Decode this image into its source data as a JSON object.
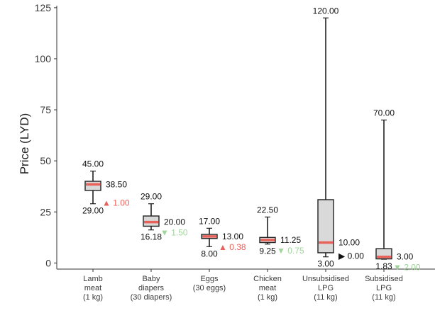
{
  "chart_data": {
    "type": "box",
    "ylabel": "Price (LYD)",
    "ylim": [
      -3,
      126
    ],
    "yticks": [
      0,
      25,
      50,
      75,
      100,
      125
    ],
    "yticklabels": [
      "0",
      "25",
      "50",
      "75",
      "100",
      "125"
    ],
    "colors": {
      "box_fill": "#d9d9d9",
      "median": "#e8615a",
      "up": "#e8615a",
      "down": "#9fd49a",
      "flat": "#111111"
    },
    "categories": [
      {
        "label_lines": [
          "Lamb",
          "meat",
          "(1 kg)"
        ],
        "max": 45,
        "q3": 40.0,
        "median": 38.5,
        "q1": 35.5,
        "min": 29,
        "max_label": "45.00",
        "min_label": "29.00",
        "median_label": "38.50",
        "change_symbol": "▲",
        "change_text": "1.00",
        "change_dir": "up"
      },
      {
        "label_lines": [
          "Baby",
          "diapers",
          "(30 diapers)"
        ],
        "max": 29,
        "q3": 23.0,
        "median": 20.0,
        "q1": 18.0,
        "min": 16.18,
        "max_label": "29.00",
        "min_label": "16.18",
        "median_label": "20.00",
        "change_symbol": "▼",
        "change_text": "1.50",
        "change_dir": "down"
      },
      {
        "label_lines": [
          "Eggs",
          "(30 eggs)"
        ],
        "max": 17,
        "q3": 14.0,
        "median": 13.0,
        "q1": 12.0,
        "min": 8,
        "max_label": "17.00",
        "min_label": "8.00",
        "median_label": "13.00",
        "change_symbol": "▲",
        "change_text": "0.38",
        "change_dir": "up"
      },
      {
        "label_lines": [
          "Chicken",
          "meat",
          "(1 kg)"
        ],
        "max": 22.5,
        "q3": 12.5,
        "median": 11.25,
        "q1": 10.0,
        "min": 9.25,
        "max_label": "22.50",
        "min_label": "9.25",
        "median_label": "11.25",
        "change_symbol": "▼",
        "change_text": "0.75",
        "change_dir": "down"
      },
      {
        "label_lines": [
          "Unsubsidised",
          "LPG",
          "(11 kg)"
        ],
        "max": 120,
        "q3": 31.0,
        "median": 10.0,
        "q1": 5.0,
        "min": 3,
        "max_label": "120.00",
        "min_label": "3.00",
        "median_label": "10.00",
        "change_symbol": "▶",
        "change_text": "0.00",
        "change_dir": "flat"
      },
      {
        "label_lines": [
          "Subsidised",
          "LPG",
          "(11 kg)"
        ],
        "max": 70,
        "q3": 7.0,
        "median": 3.0,
        "q1": 2.0,
        "min": 1.83,
        "max_label": "70.00",
        "min_label": "1.83",
        "median_label": "3.00",
        "change_symbol": "▼",
        "change_text": "2.00",
        "change_dir": "down"
      }
    ]
  }
}
